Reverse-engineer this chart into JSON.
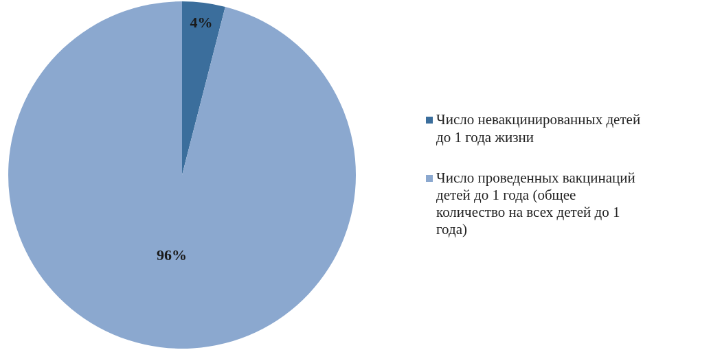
{
  "chart_data": {
    "type": "pie",
    "categories": [
      "Число невакцинированных детей до 1 года жизни",
      "Число проведенных вакцинаций детей до 1 года (общее количество на всех детей до 1 года)"
    ],
    "values": [
      4,
      96
    ],
    "colors": [
      "#3b6e9c",
      "#8ba8cf"
    ],
    "value_labels": [
      "4%",
      "96%"
    ],
    "legend": "right"
  }
}
